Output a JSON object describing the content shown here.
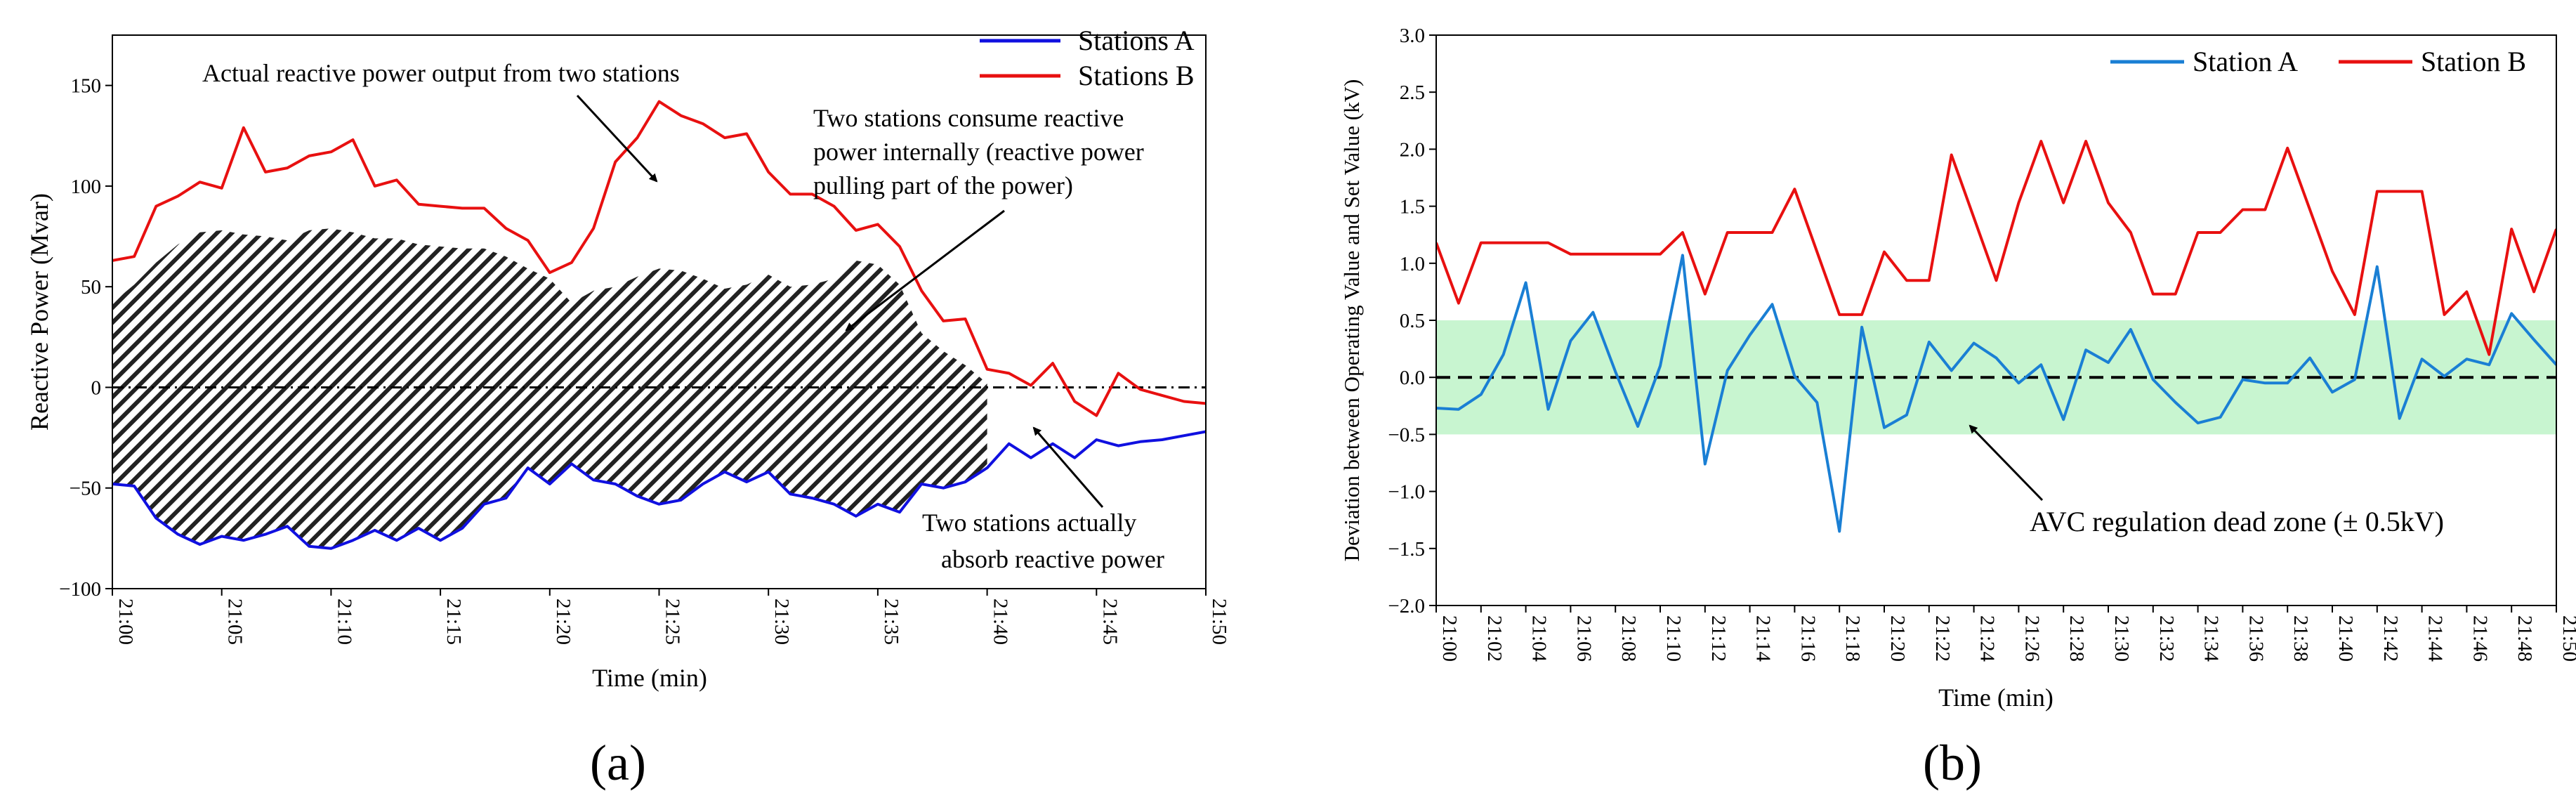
{
  "figure": {
    "panel_labels": [
      "(a)",
      "(b)"
    ]
  },
  "chart_data": [
    {
      "type": "line",
      "panel": "(a)",
      "title": "",
      "xlabel": "Time (min)",
      "ylabel": "Reactive Power (Mvar)",
      "xlim": [
        0,
        50
      ],
      "ylim": [
        -100,
        175
      ],
      "xticks": [
        0,
        5,
        10,
        15,
        20,
        25,
        30,
        35,
        40,
        45,
        50
      ],
      "xtick_labels": [
        "21:00",
        "21:05",
        "21:10",
        "21:15",
        "21:20",
        "21:25",
        "21:30",
        "21:35",
        "21:40",
        "21:45",
        "21:50"
      ],
      "yticks": [
        -100,
        -50,
        0,
        50,
        100,
        150
      ],
      "ytick_labels": [
        "−100",
        "−50",
        "0",
        "50",
        "100",
        "150"
      ],
      "legend_position": "top-right",
      "zero_line": "dash-dot",
      "series": [
        {
          "name": "Stations A",
          "color": "#1010e0",
          "x": [
            0,
            1,
            2,
            3,
            4,
            5,
            6,
            7,
            8,
            9,
            10,
            11,
            12,
            13,
            14,
            15,
            16,
            17,
            18,
            19,
            20,
            21,
            22,
            23,
            24,
            25,
            26,
            27,
            28,
            29,
            30,
            31,
            32,
            33,
            34,
            35,
            36,
            37,
            38,
            39,
            40,
            41,
            42,
            43,
            44,
            45,
            46,
            47,
            48,
            49,
            50
          ],
          "values": [
            -48,
            -49,
            -65,
            -73,
            -78,
            -74,
            -76,
            -73,
            -69,
            -79,
            -80,
            -76,
            -71,
            -76,
            -70,
            -76,
            -70,
            -58,
            -55,
            -40,
            -48,
            -38,
            -46,
            -48,
            -54,
            -58,
            -56,
            -48,
            -42,
            -47,
            -42,
            -53,
            -55,
            -58,
            -64,
            -58,
            -62,
            -48,
            -50,
            -47,
            -40,
            -28,
            -35,
            -28,
            -35,
            -26,
            -29,
            -27,
            -26,
            -24,
            -22
          ]
        },
        {
          "name": "Stations B",
          "color": "#e81010",
          "x": [
            0,
            1,
            2,
            3,
            4,
            5,
            6,
            7,
            8,
            9,
            10,
            11,
            12,
            13,
            14,
            15,
            16,
            17,
            18,
            19,
            20,
            21,
            22,
            23,
            24,
            25,
            26,
            27,
            28,
            29,
            30,
            31,
            32,
            33,
            34,
            35,
            36,
            37,
            38,
            39,
            40,
            41,
            42,
            43,
            44,
            45,
            46,
            47,
            48,
            49,
            50
          ],
          "values": [
            63,
            65,
            90,
            95,
            102,
            99,
            129,
            107,
            109,
            115,
            117,
            123,
            100,
            103,
            91,
            90,
            89,
            89,
            79,
            73,
            57,
            62,
            79,
            112,
            124,
            142,
            135,
            131,
            124,
            126,
            107,
            96,
            96,
            90,
            78,
            81,
            70,
            48,
            33,
            34,
            9,
            7,
            1,
            12,
            -7,
            -14,
            7,
            -1,
            -4,
            -7,
            -8
          ]
        }
      ],
      "shaded_region": {
        "label": "Two stations consume reactive power internally (reactive power pulling part of the power)",
        "pattern": "diagonal hatch",
        "upper": [
          42,
          51,
          62,
          71,
          77,
          78,
          76,
          75,
          73,
          78,
          79,
          77,
          74,
          74,
          71,
          70,
          69,
          69,
          65,
          59,
          54,
          42,
          48,
          50,
          55,
          59,
          58,
          54,
          49,
          51,
          56,
          50,
          51,
          54,
          63,
          61,
          51,
          27,
          18,
          11,
          2
        ]
      },
      "annotations": [
        {
          "text": "Actual reactive power output from two stations"
        },
        {
          "text": "Two stations consume reactive"
        },
        {
          "text": "power internally (reactive power"
        },
        {
          "text": "pulling part of the power)"
        },
        {
          "text": "Two stations actually"
        },
        {
          "text": "absorb reactive power"
        }
      ]
    },
    {
      "type": "line",
      "panel": "(b)",
      "title": "",
      "xlabel": "Time (min)",
      "ylabel": "Deviation between Operating Value and Set Value (kV)",
      "xlim": [
        0,
        50
      ],
      "ylim": [
        -2.0,
        3.0
      ],
      "xticks": [
        0,
        2,
        4,
        6,
        8,
        10,
        12,
        14,
        16,
        18,
        20,
        22,
        24,
        26,
        28,
        30,
        32,
        34,
        36,
        38,
        40,
        42,
        44,
        46,
        48,
        50
      ],
      "xtick_labels": [
        "21:00",
        "21:02",
        "21:04",
        "21:06",
        "21:08",
        "21:10",
        "21:12",
        "21:14",
        "21:16",
        "21:18",
        "21:20",
        "21:22",
        "21:24",
        "21:26",
        "21:28",
        "21:30",
        "21:32",
        "21:34",
        "21:36",
        "21:38",
        "21:40",
        "21:42",
        "21:44",
        "21:46",
        "21:48",
        "21:50"
      ],
      "yticks": [
        -2.0,
        -1.5,
        -1.0,
        -0.5,
        0.0,
        0.5,
        1.0,
        1.5,
        2.0,
        2.5,
        3.0
      ],
      "ytick_labels": [
        "−2.0",
        "−1.5",
        "−1.0",
        "−0.5",
        "0.0",
        "0.5",
        "1.0",
        "1.5",
        "2.0",
        "2.5",
        "3.0"
      ],
      "legend_position": "top-right",
      "zero_line": "dashed",
      "dead_zone": {
        "low": -0.5,
        "high": 0.5,
        "color": "#c8f5d0",
        "label": "AVC regulation dead zone (± 0.5kV)"
      },
      "series": [
        {
          "name": "Station A",
          "color": "#1a7fd4",
          "x": [
            0,
            1,
            2,
            3,
            4,
            5,
            6,
            7,
            8,
            9,
            10,
            11,
            12,
            13,
            14,
            15,
            16,
            17,
            18,
            19,
            20,
            21,
            22,
            23,
            24,
            25,
            26,
            27,
            28,
            29,
            30,
            31,
            32,
            33,
            34,
            35,
            36,
            37,
            38,
            39,
            40,
            41,
            42,
            43,
            44,
            45,
            46,
            47,
            48,
            49,
            50
          ],
          "values": [
            -0.27,
            -0.28,
            -0.15,
            0.2,
            0.83,
            -0.28,
            0.32,
            0.57,
            0.05,
            -0.43,
            0.1,
            1.07,
            -0.76,
            0.06,
            0.37,
            0.64,
            0.01,
            -0.22,
            -1.35,
            0.44,
            -0.44,
            -0.33,
            0.31,
            0.06,
            0.3,
            0.17,
            -0.05,
            0.11,
            -0.37,
            0.24,
            0.13,
            0.42,
            -0.02,
            -0.22,
            -0.4,
            -0.35,
            -0.02,
            -0.05,
            -0.05,
            0.17,
            -0.13,
            -0.02,
            0.97,
            -0.36,
            0.16,
            0.01,
            0.16,
            0.11,
            0.56,
            0.33,
            0.11
          ]
        },
        {
          "name": "Station B",
          "color": "#e81010",
          "x": [
            0,
            1,
            2,
            3,
            4,
            5,
            6,
            7,
            8,
            9,
            10,
            11,
            12,
            13,
            14,
            15,
            16,
            17,
            18,
            19,
            20,
            21,
            22,
            23,
            24,
            25,
            26,
            27,
            28,
            29,
            30,
            31,
            32,
            33,
            34,
            35,
            36,
            37,
            38,
            39,
            40,
            41,
            42,
            43,
            44,
            45,
            46,
            47,
            48,
            49,
            50
          ],
          "values": [
            1.18,
            0.65,
            1.18,
            1.18,
            1.18,
            1.18,
            1.08,
            1.08,
            1.08,
            1.08,
            1.08,
            1.27,
            0.73,
            1.27,
            1.27,
            1.27,
            1.65,
            1.1,
            0.55,
            0.55,
            1.1,
            0.85,
            0.85,
            1.95,
            1.4,
            0.85,
            1.53,
            2.07,
            1.53,
            2.07,
            1.53,
            1.27,
            0.73,
            0.73,
            1.27,
            1.27,
            1.47,
            1.47,
            2.01,
            1.47,
            0.93,
            0.55,
            1.63,
            1.63,
            1.63,
            0.55,
            0.75,
            0.2,
            1.3,
            0.75,
            1.3
          ]
        }
      ],
      "annotations": [
        {
          "text": "AVC regulation dead zone (± 0.5kV)"
        }
      ]
    }
  ]
}
